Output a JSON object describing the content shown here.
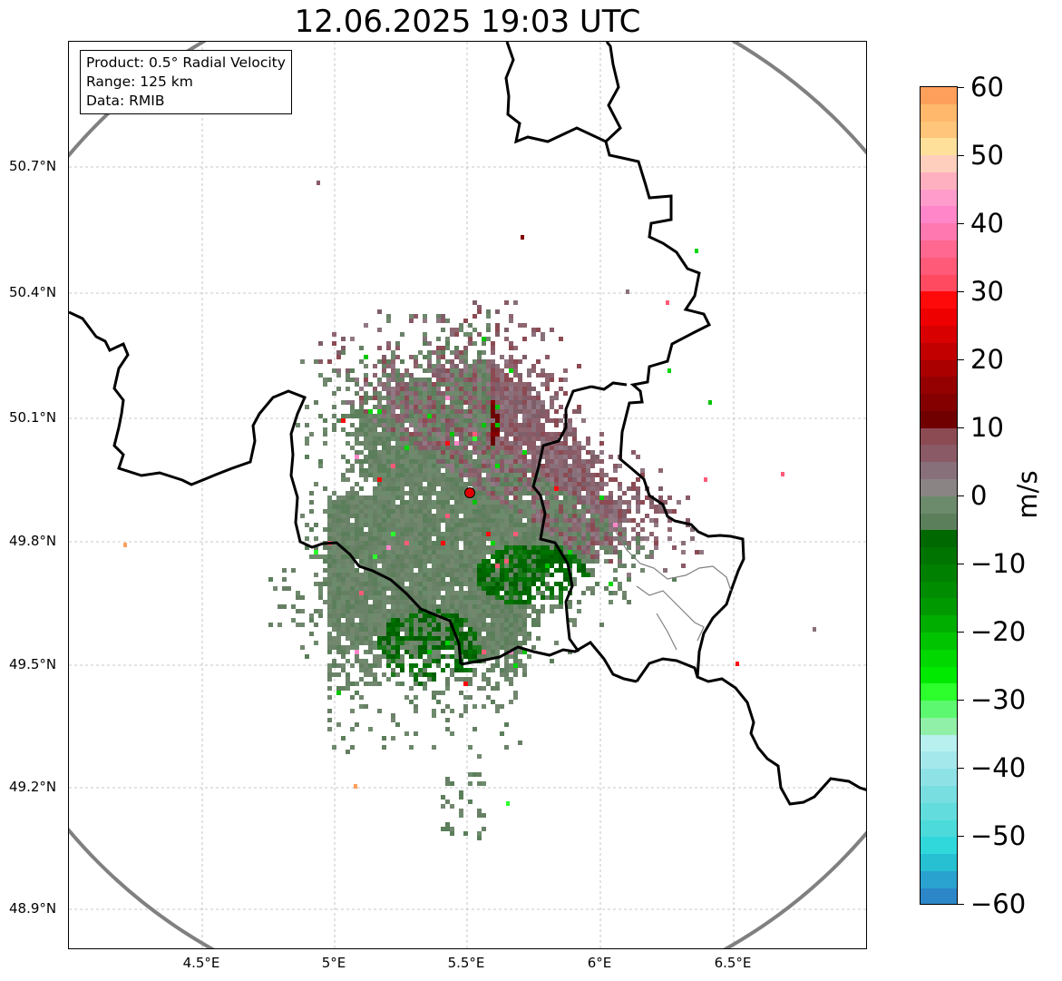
{
  "title": "12.06.2025 19:03 UTC",
  "info_box": {
    "product": "Product: 0.5° Radial Velocity",
    "range": "Range: 125 km",
    "data": "Data: RMIB"
  },
  "axes": {
    "y_ticks": [
      "50.7°N",
      "50.4°N",
      "50.1°N",
      "49.8°N",
      "49.5°N",
      "49.2°N",
      "48.9°N"
    ],
    "x_ticks": [
      "4.5°E",
      "5°E",
      "5.5°E",
      "6°E",
      "6.5°E"
    ]
  },
  "colorbar": {
    "unit": "m/s",
    "ticks": [
      "60",
      "50",
      "40",
      "30",
      "20",
      "10",
      "0",
      "−10",
      "−20",
      "−30",
      "−40",
      "−50",
      "−60"
    ],
    "range": [
      -60,
      60
    ],
    "colors": [
      "#ff9f5c",
      "#ffb86c",
      "#ffc57a",
      "#ffe09a",
      "#ffcfbe",
      "#ffb0c0",
      "#ff9ccc",
      "#ff86c8",
      "#ff78b0",
      "#ff6890",
      "#ff5a78",
      "#ff4a60",
      "#ff0a0a",
      "#ee0000",
      "#d80000",
      "#c20000",
      "#aa0000",
      "#950000",
      "#840000",
      "#700000",
      "#8c4a52",
      "#8a5a66",
      "#88707a",
      "#8a8484",
      "#6c8a6c",
      "#5a7f5a",
      "#006800",
      "#007400",
      "#008000",
      "#008c00",
      "#009a00",
      "#00ae00",
      "#00c400",
      "#00d800",
      "#00ea00",
      "#2cff2c",
      "#5cf870",
      "#90f0a8",
      "#b8f0f0",
      "#a4e8ec",
      "#8ee2e6",
      "#78dee0",
      "#62dcdc",
      "#4cdada",
      "#30d8dc",
      "#26c0d2",
      "#2aa2d0",
      "#2c86c8"
    ]
  },
  "radar": {
    "site_lon": 5.505,
    "site_lat": 49.914,
    "range_km": 125
  }
}
